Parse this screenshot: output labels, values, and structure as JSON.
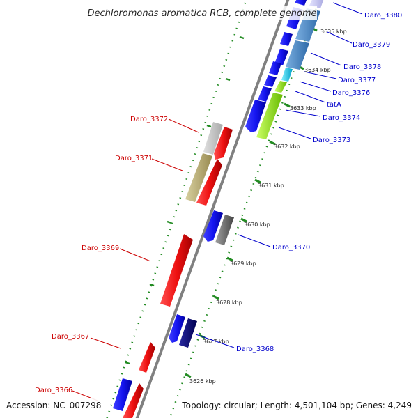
{
  "title": "Dechloromonas aromatica RCB, complete genome",
  "footer": {
    "accession": "Accession: NC_007298",
    "info": "Topology: circular; Length: 4,501,104 bp; Genes: 4,249"
  },
  "colors": {
    "forward_label": "#0000cc",
    "reverse_label": "#cc0000",
    "backbone": "#808080",
    "tick": "#228b22"
  },
  "ticks": [
    {
      "label": "3635 kbp"
    },
    {
      "label": "3634 kbp"
    },
    {
      "label": "3633 kbp"
    },
    {
      "label": "3632 kbp"
    },
    {
      "label": "3631 kbp"
    },
    {
      "label": "3630 kbp"
    },
    {
      "label": "3629 kbp"
    },
    {
      "label": "3628 kbp"
    },
    {
      "label": "3627 kbp"
    },
    {
      "label": "3626 kbp"
    }
  ],
  "forward_genes": [
    {
      "name": "Daro_3380"
    },
    {
      "name": "Daro_3379"
    },
    {
      "name": "Daro_3378"
    },
    {
      "name": "Daro_3377"
    },
    {
      "name": "Daro_3376"
    },
    {
      "name": "tatA"
    },
    {
      "name": "Daro_3374"
    },
    {
      "name": "Daro_3373"
    },
    {
      "name": "Daro_3370"
    },
    {
      "name": "Daro_3368"
    }
  ],
  "reverse_genes": [
    {
      "name": "Daro_3372"
    },
    {
      "name": "Daro_3371"
    },
    {
      "name": "Daro_3369"
    },
    {
      "name": "Daro_3367"
    },
    {
      "name": "Daro_3366"
    }
  ]
}
